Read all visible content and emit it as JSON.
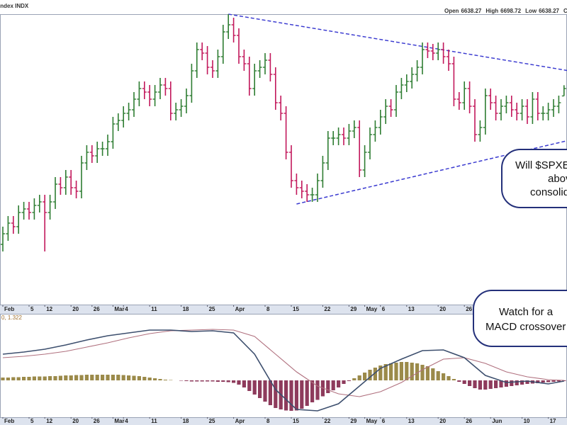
{
  "chart_data": [
    {
      "type": "ohlc",
      "title": "Index INDX",
      "stats_labels": [
        "Open",
        "High",
        "Low",
        "Close"
      ],
      "up_color": "#2e7d32",
      "down_color": "#c2185b",
      "ylim": [
        5460,
        7100
      ],
      "open": [
        5800,
        5860,
        5920,
        5900,
        5980,
        6000,
        5980,
        6020,
        6040,
        5980,
        6040,
        6140,
        6120,
        6180,
        6120,
        6100,
        6260,
        6320,
        6300,
        6340,
        6340,
        6380,
        6480,
        6500,
        6540,
        6560,
        6620,
        6680,
        6660,
        6620,
        6660,
        6700,
        6680,
        6540,
        6560,
        6580,
        6640,
        6780,
        6900,
        6880,
        6800,
        6780,
        6860,
        7000,
        7040,
        6980,
        6860,
        6820,
        6680,
        6780,
        6800,
        6840,
        6760,
        6600,
        6540,
        6320,
        6160,
        6120,
        6100,
        6080,
        6080,
        6160,
        6260,
        6400,
        6400,
        6420,
        6400,
        6440,
        6460,
        6220,
        6320,
        6420,
        6460,
        6520,
        6580,
        6560,
        6660,
        6700,
        6720,
        6760,
        6800,
        6900,
        6892,
        6880,
        6900,
        6860,
        6820,
        6620,
        6600,
        6680,
        6580,
        6420,
        6460,
        6640,
        6600,
        6540,
        6580,
        6600,
        6560,
        6540,
        6580,
        6520,
        6620,
        6540,
        6540,
        6560,
        6580,
        6638.27
      ],
      "high": [
        5900,
        5960,
        5960,
        6020,
        6040,
        6040,
        6060,
        6080,
        6080,
        6080,
        6180,
        6180,
        6220,
        6220,
        6160,
        6300,
        6360,
        6360,
        6380,
        6380,
        6420,
        6520,
        6540,
        6580,
        6600,
        6660,
        6720,
        6720,
        6700,
        6700,
        6740,
        6740,
        6720,
        6600,
        6620,
        6680,
        6820,
        6940,
        6940,
        6920,
        6840,
        6900,
        7040,
        7100,
        7080,
        7020,
        6900,
        6860,
        6820,
        6840,
        6880,
        6880,
        6800,
        6640,
        6580,
        6360,
        6200,
        6160,
        6140,
        6120,
        6200,
        6300,
        6440,
        6440,
        6460,
        6460,
        6480,
        6500,
        6500,
        6360,
        6460,
        6500,
        6560,
        6620,
        6620,
        6700,
        6740,
        6760,
        6800,
        6840,
        6940,
        6940,
        6932,
        6940,
        6940,
        6900,
        6860,
        6660,
        6720,
        6720,
        6620,
        6500,
        6680,
        6680,
        6640,
        6620,
        6640,
        6640,
        6600,
        6620,
        6620,
        6660,
        6660,
        6580,
        6600,
        6620,
        6640,
        6698.72
      ],
      "low": [
        5760,
        5820,
        5860,
        5860,
        5940,
        5940,
        5940,
        5980,
        5760,
        5940,
        6000,
        6080,
        6080,
        6080,
        6060,
        6060,
        6220,
        6260,
        6260,
        6300,
        6300,
        6340,
        6440,
        6460,
        6500,
        6520,
        6580,
        6620,
        6580,
        6580,
        6620,
        6640,
        6500,
        6500,
        6520,
        6540,
        6600,
        6740,
        6840,
        6760,
        6740,
        6740,
        6820,
        6960,
        6940,
        6820,
        6780,
        6640,
        6640,
        6740,
        6760,
        6720,
        6560,
        6500,
        6280,
        6120,
        6080,
        6060,
        6040,
        6040,
        6040,
        6120,
        6220,
        6360,
        6360,
        6360,
        6360,
        6400,
        6180,
        6180,
        6280,
        6380,
        6420,
        6480,
        6520,
        6520,
        6620,
        6660,
        6680,
        6720,
        6760,
        6852,
        6840,
        6840,
        6820,
        6780,
        6580,
        6560,
        6560,
        6540,
        6380,
        6380,
        6420,
        6560,
        6500,
        6500,
        6540,
        6520,
        6500,
        6500,
        6480,
        6480,
        6500,
        6500,
        6500,
        6520,
        6540,
        6638.27
      ],
      "close": [
        5860,
        5920,
        5900,
        5980,
        6000,
        5980,
        6020,
        6040,
        5980,
        6040,
        6140,
        6120,
        6180,
        6120,
        6100,
        6260,
        6320,
        6300,
        6340,
        6340,
        6380,
        6480,
        6500,
        6540,
        6560,
        6620,
        6680,
        6660,
        6620,
        6660,
        6700,
        6680,
        6540,
        6560,
        6580,
        6640,
        6780,
        6900,
        6880,
        6800,
        6780,
        6860,
        7000,
        7040,
        6980,
        6860,
        6820,
        6680,
        6780,
        6800,
        6840,
        6760,
        6600,
        6540,
        6320,
        6160,
        6120,
        6100,
        6080,
        6080,
        6160,
        6260,
        6400,
        6400,
        6420,
        6400,
        6440,
        6460,
        6220,
        6320,
        6420,
        6460,
        6520,
        6580,
        6560,
        6660,
        6700,
        6720,
        6760,
        6800,
        6900,
        6892,
        6880,
        6900,
        6860,
        6820,
        6620,
        6600,
        6680,
        6580,
        6420,
        6460,
        6640,
        6600,
        6540,
        6580,
        6600,
        6560,
        6540,
        6580,
        6520,
        6620,
        6540,
        6540,
        6560,
        6580,
        6600,
        6680
      ],
      "xticks": [
        {
          "value": 0,
          "label": "Feb"
        },
        {
          "value": 5,
          "label": "5"
        },
        {
          "value": 8,
          "label": "12"
        },
        {
          "value": 13,
          "label": "20"
        },
        {
          "value": 17,
          "label": "26"
        },
        {
          "value": 21,
          "label": "Mar"
        },
        {
          "value": 23,
          "label": "4"
        },
        {
          "value": 28,
          "label": "11"
        },
        {
          "value": 34,
          "label": "18"
        },
        {
          "value": 39,
          "label": "25"
        },
        {
          "value": 44,
          "label": "Apr"
        },
        {
          "value": 50,
          "label": "8"
        },
        {
          "value": 55,
          "label": "15"
        },
        {
          "value": 61,
          "label": "22"
        },
        {
          "value": 66,
          "label": "29"
        },
        {
          "value": 69,
          "label": "May"
        },
        {
          "value": 72,
          "label": "6"
        },
        {
          "value": 77,
          "label": "13"
        },
        {
          "value": 83,
          "label": "20"
        },
        {
          "value": 88,
          "label": "26"
        },
        {
          "value": 93,
          "label": "Jun"
        },
        {
          "value": 99,
          "label": "10"
        },
        {
          "value": 104,
          "label": "17"
        }
      ],
      "trendlines": {
        "color": "#3a3ad0",
        "lines": [
          {
            "x": [
              43,
              108
            ],
            "y": [
              7100,
              6780
            ]
          },
          {
            "x": [
              56,
              108
            ],
            "y": [
              6028,
              6388
            ]
          }
        ]
      }
    },
    {
      "type": "macd",
      "label": "0, 1.322",
      "ylim": [
        -120,
        200
      ],
      "x": [
        0,
        4,
        8,
        12,
        16,
        20,
        24,
        28,
        32,
        36,
        40,
        44,
        48,
        52,
        56,
        60,
        64,
        68,
        72,
        76,
        80,
        84,
        88,
        92,
        96,
        100,
        104,
        107
      ],
      "series": [
        {
          "color": "#3d4f6e",
          "values": [
            74,
            80,
            88,
            100,
            114,
            126,
            134,
            142,
            142,
            138,
            140,
            134,
            74,
            -26,
            -82,
            -86,
            -66,
            -16,
            34,
            60,
            84,
            86,
            64,
            14,
            -6,
            -2,
            -10,
            -2
          ]
        },
        {
          "color": "#b0707e",
          "values": [
            64,
            68,
            74,
            82,
            94,
            106,
            120,
            132,
            140,
            142,
            144,
            142,
            124,
            74,
            24,
            -16,
            -38,
            -46,
            -32,
            -6,
            30,
            60,
            64,
            48,
            24,
            10,
            2,
            0
          ]
        }
      ],
      "histogram": {
        "pos_color": "#9b8a4a",
        "neg_color": "#8e3b5c",
        "values": [
          8,
          8,
          9,
          9,
          10,
          10,
          11,
          11,
          11,
          12,
          12,
          13,
          14,
          14,
          15,
          15,
          16,
          16,
          16,
          16,
          16,
          16,
          16,
          15,
          14,
          13,
          12,
          10,
          8,
          6,
          4,
          2,
          1,
          0,
          -1,
          -2,
          -3,
          -3,
          -3,
          -3,
          -3,
          -4,
          -4,
          -5,
          -7,
          -12,
          -20,
          -30,
          -40,
          -50,
          -60,
          -70,
          -78,
          -82,
          -85,
          -86,
          -85,
          -80,
          -72,
          -62,
          -55,
          -45,
          -36,
          -28,
          -20,
          -10,
          -2,
          6,
          14,
          22,
          30,
          36,
          42,
          46,
          48,
          50,
          52,
          52,
          50,
          48,
          44,
          40,
          34,
          26,
          20,
          12,
          4,
          -4,
          -10,
          -16,
          -22,
          -26,
          -26,
          -24,
          -22,
          -20,
          -18,
          -16,
          -14,
          -12,
          -10,
          -9,
          -8,
          -6,
          -5,
          -4,
          -3,
          -2
        ]
      }
    }
  ],
  "callouts": [
    {
      "lines": [
        "Will $SPXE",
        "above",
        "consolid"
      ]
    },
    {
      "lines": [
        "Watch for a",
        "MACD crossover"
      ]
    }
  ]
}
